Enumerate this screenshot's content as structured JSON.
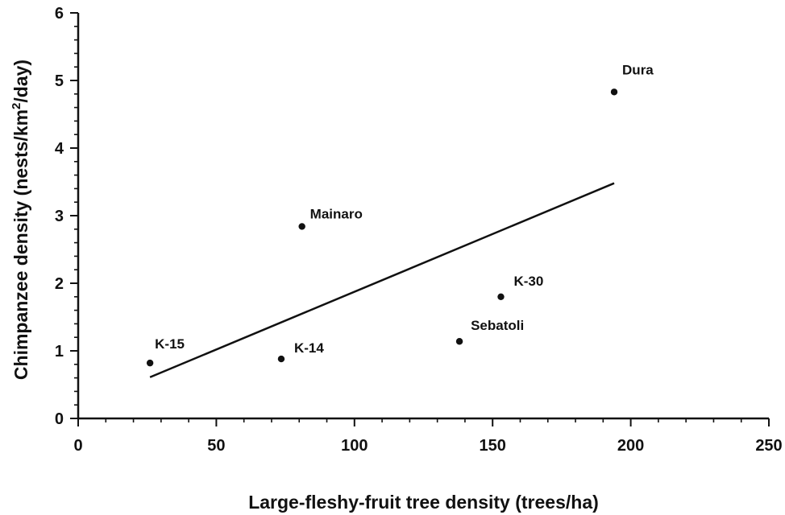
{
  "chart_data": {
    "type": "scatter",
    "title": "",
    "xlabel": "Large-fleshy-fruit tree density (trees/ha)",
    "ylabel": "Chimpanzee density (nests/km2/day)",
    "ylabel_parts": {
      "before": "Chimpanzee density (nests/km",
      "superscript": "2",
      "after": "/day)"
    },
    "xlim": [
      0,
      250
    ],
    "ylim": [
      0,
      6
    ],
    "x_major_ticks": [
      0,
      50,
      100,
      150,
      200,
      250
    ],
    "x_tick_labels": [
      "0",
      "50",
      "100",
      "150",
      "200",
      "250"
    ],
    "x_minor_step": 10,
    "y_major_ticks": [
      0,
      1,
      2,
      3,
      4,
      5,
      6
    ],
    "y_tick_labels": [
      "0",
      "1",
      "2",
      "3",
      "4",
      "5",
      "6"
    ],
    "y_minor_step": 0.2,
    "grid": false,
    "legend": false,
    "colors": {
      "ink": "#111111",
      "background": "#ffffff"
    },
    "points": [
      {
        "label": "K-15",
        "x": 26,
        "y": 0.82
      },
      {
        "label": "K-14",
        "x": 73.5,
        "y": 0.88
      },
      {
        "label": "Mainaro",
        "x": 81,
        "y": 2.84
      },
      {
        "label": "Sebatoli",
        "x": 138,
        "y": 1.14
      },
      {
        "label": "K-30",
        "x": 153,
        "y": 1.8
      },
      {
        "label": "Dura",
        "x": 194,
        "y": 4.83
      }
    ],
    "trendline": {
      "x": [
        26,
        194
      ],
      "y": [
        0.61,
        3.48
      ]
    }
  }
}
